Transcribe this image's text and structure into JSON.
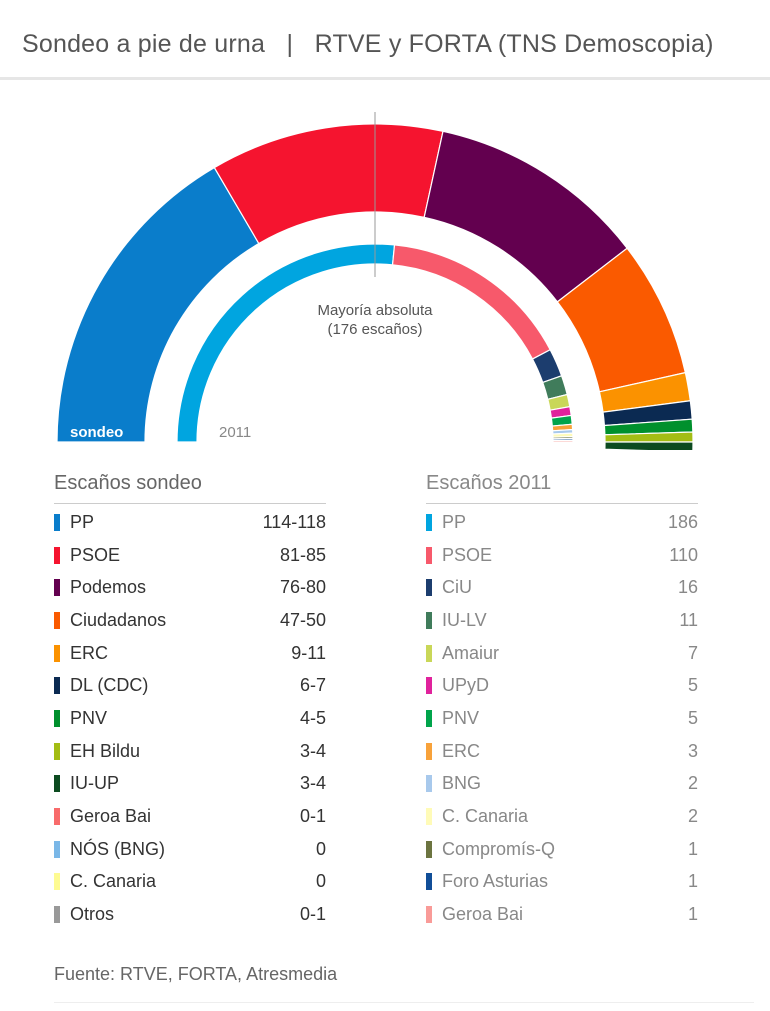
{
  "header": {
    "title": "Sondeo a pie de urna   |   RTVE y FORTA (TNS Demoscopia)"
  },
  "chart_data": {
    "type": "pie",
    "subtype": "parliament-semicircle",
    "total_seats": 350,
    "majority_label": [
      "Mayoría absoluta",
      "(176 escaños)"
    ],
    "outer_ring_label": "sondeo",
    "inner_ring_label": "2011",
    "series": [
      {
        "name": "Escaños sondeo",
        "parties": [
          {
            "name": "PP",
            "value": "114-118",
            "seats": 116,
            "color": "#0a7dcb"
          },
          {
            "name": "PSOE",
            "value": "81-85",
            "seats": 83,
            "color": "#f5142f"
          },
          {
            "name": "Podemos",
            "value": "76-80",
            "seats": 78,
            "color": "#63004f"
          },
          {
            "name": "Ciudadanos",
            "value": "47-50",
            "seats": 48.5,
            "color": "#fa5a00"
          },
          {
            "name": "ERC",
            "value": "9-11",
            "seats": 10,
            "color": "#fb9200"
          },
          {
            "name": "DL (CDC)",
            "value": "6-7",
            "seats": 6.5,
            "color": "#0b2a52"
          },
          {
            "name": "PNV",
            "value": "4-5",
            "seats": 4.5,
            "color": "#00902d"
          },
          {
            "name": "EH Bildu",
            "value": "3-4",
            "seats": 3.5,
            "color": "#a3bd14"
          },
          {
            "name": "IU-UP",
            "value": "3-4",
            "seats": 3.5,
            "color": "#0c4b20"
          },
          {
            "name": "Geroa Bai",
            "value": "0-1",
            "seats": 0,
            "color": "#f86b6b"
          },
          {
            "name": "NÓS (BNG)",
            "value": "0",
            "seats": 0,
            "color": "#7ab7e7"
          },
          {
            "name": "C. Canaria",
            "value": "0",
            "seats": 0,
            "color": "#fefb92"
          },
          {
            "name": "Otros",
            "value": "0-1",
            "seats": 0,
            "color": "#999999"
          }
        ]
      },
      {
        "name": "Escaños 2011",
        "parties": [
          {
            "name": "PP",
            "value": "186",
            "seats": 186,
            "color": "#00a5e0"
          },
          {
            "name": "PSOE",
            "value": "110",
            "seats": 110,
            "color": "#f7596b"
          },
          {
            "name": "CiU",
            "value": "16",
            "seats": 16,
            "color": "#1c3d6e"
          },
          {
            "name": "IU-LV",
            "value": "11",
            "seats": 11,
            "color": "#407c5b"
          },
          {
            "name": "Amaiur",
            "value": "7",
            "seats": 7,
            "color": "#c9d758"
          },
          {
            "name": "UPyD",
            "value": "5",
            "seats": 5,
            "color": "#e0229c"
          },
          {
            "name": "PNV",
            "value": "5",
            "seats": 5,
            "color": "#00a44b"
          },
          {
            "name": "ERC",
            "value": "3",
            "seats": 3,
            "color": "#f8a23a"
          },
          {
            "name": "BNG",
            "value": "2",
            "seats": 2,
            "color": "#a8c9ec"
          },
          {
            "name": "C. Canaria",
            "value": "2",
            "seats": 2,
            "color": "#fffbb8"
          },
          {
            "name": "Compromís-Q",
            "value": "1",
            "seats": 1,
            "color": "#6c7440"
          },
          {
            "name": "Foro Asturias",
            "value": "1",
            "seats": 1,
            "color": "#114e98"
          },
          {
            "name": "Geroa Bai",
            "value": "1",
            "seats": 1,
            "color": "#f99b98"
          }
        ]
      }
    ]
  },
  "source": "Fuente: RTVE, FORTA, Atresmedia"
}
